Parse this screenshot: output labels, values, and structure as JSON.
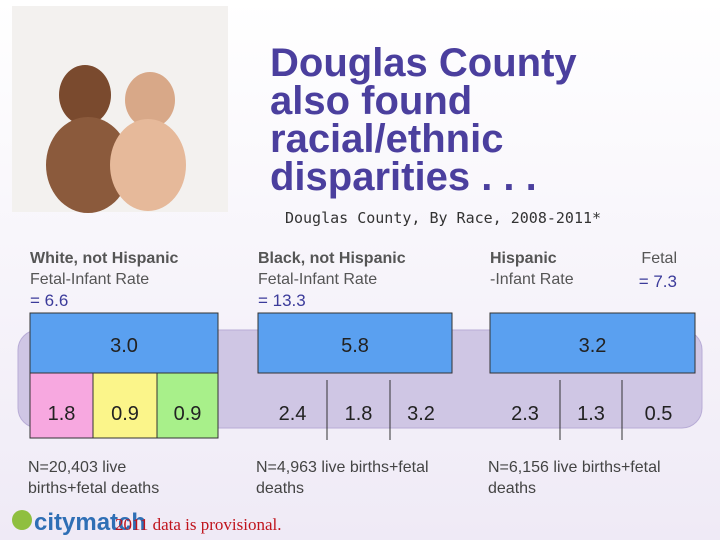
{
  "title": [
    "Douglas County",
    "also found",
    "racial/ethnic",
    "disparities . . ."
  ],
  "subtitle": "Douglas County,  By Race, 2008-2011*",
  "groups": [
    {
      "label": "White, not Hispanic",
      "rate_label": "Fetal-Infant Rate",
      "rate": "= 6.6",
      "top": "3.0",
      "parts": [
        "1.8",
        "0.9",
        "0.9"
      ],
      "note": [
        "N=20,403 live",
        "births+fetal deaths"
      ]
    },
    {
      "label": "Black, not Hispanic",
      "rate_label": "Fetal-Infant Rate",
      "rate": "= 13.3",
      "top": "5.8",
      "parts": [
        "2.4",
        "1.8",
        "3.2"
      ],
      "note": [
        "N=4,963 live births+fetal",
        "deaths"
      ]
    },
    {
      "label": "Hispanic",
      "label_right": "Fetal",
      "rate_label": "-Infant Rate",
      "rate": "= 7.3",
      "top": "3.2",
      "parts": [
        "2.3",
        "1.3",
        "0.5"
      ],
      "note": [
        "N=6,156 live births+fetal",
        "deaths"
      ]
    }
  ],
  "footnote": "2011 data is provisional.",
  "logo": "citymatch"
}
